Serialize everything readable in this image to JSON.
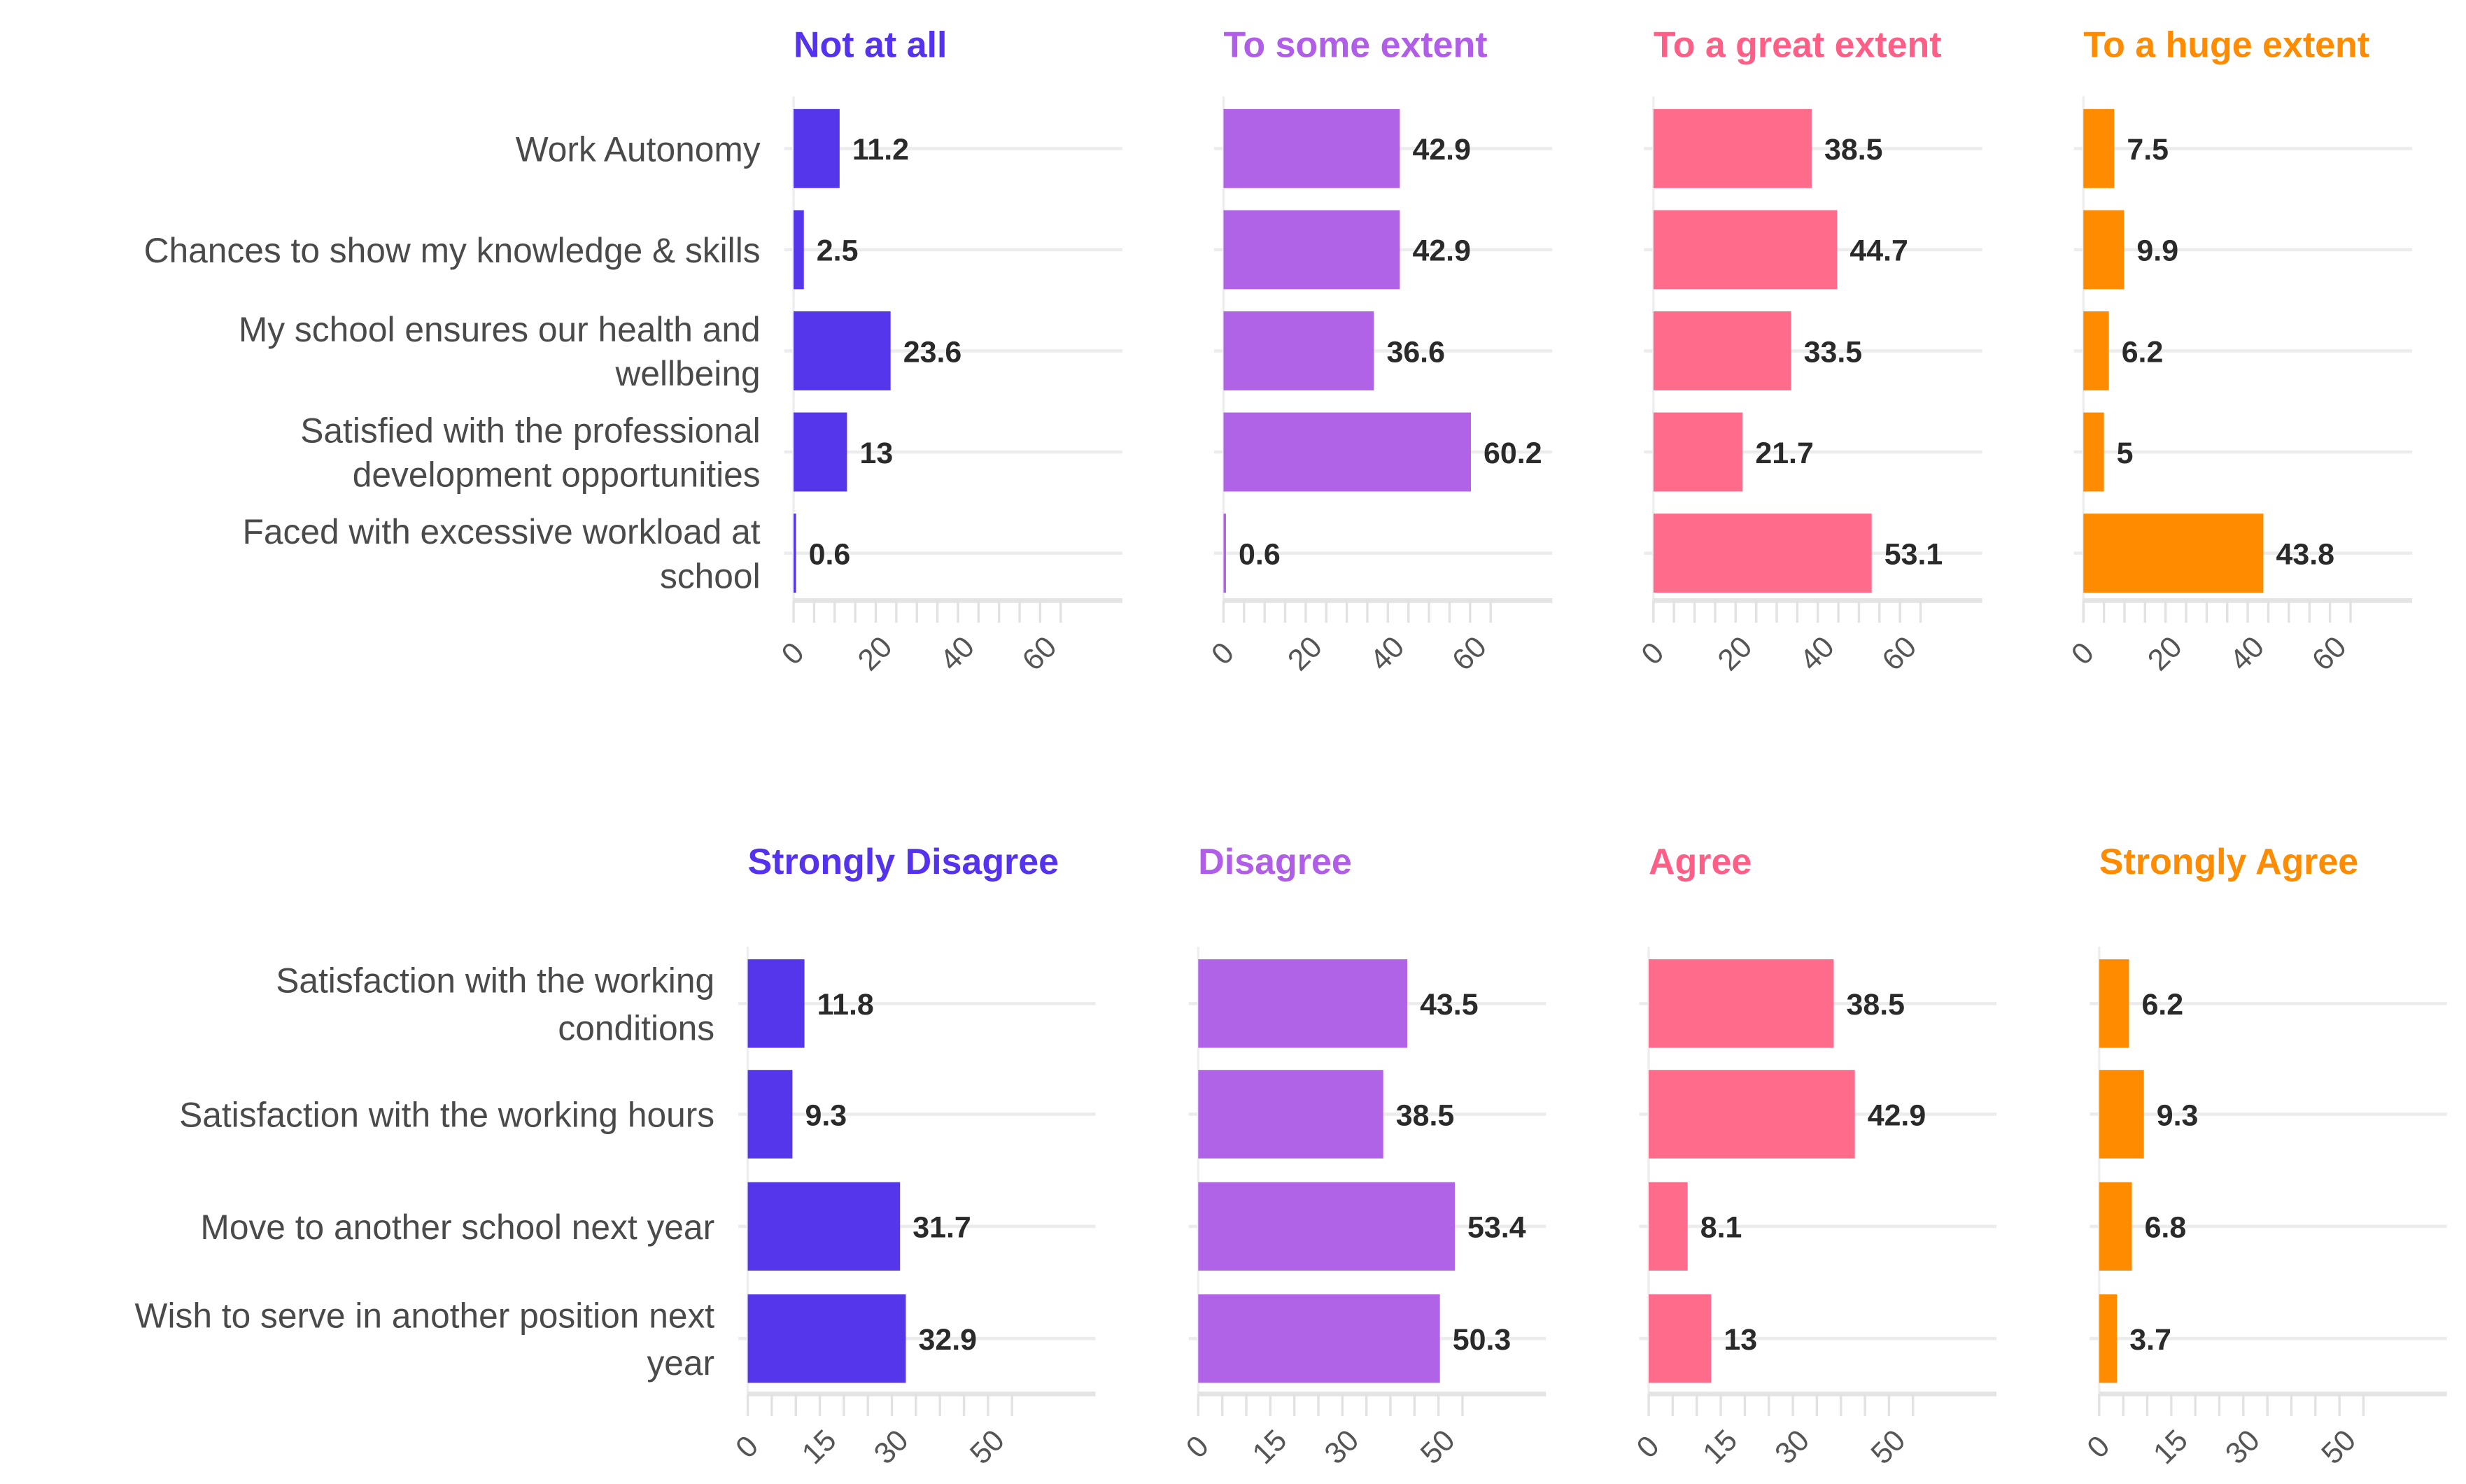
{
  "chart_data": [
    {
      "type": "bar",
      "orientation": "horizontal",
      "categories": [
        [
          "Work Autonomy"
        ],
        [
          "Chances to show my knowledge & skills"
        ],
        [
          "My school ensures our health and",
          "wellbeing"
        ],
        [
          "Satisfied with the professional",
          "development opportunities"
        ],
        [
          "Faced with excessive workload at",
          "school"
        ]
      ],
      "series": [
        {
          "name": "Not at all",
          "color": "#5536ea",
          "title_color": "#5533ee",
          "values": [
            11.2,
            2.5,
            23.6,
            13,
            0.6
          ]
        },
        {
          "name": "To some extent",
          "color": "#b163e8",
          "title_color": "#b05de8",
          "values": [
            42.9,
            42.9,
            36.6,
            60.2,
            0.6
          ]
        },
        {
          "name": "To a great extent",
          "color": "#ff6b8b",
          "title_color": "#ff5e86",
          "values": [
            38.5,
            44.7,
            33.5,
            21.7,
            53.1
          ]
        },
        {
          "name": "To a huge extent",
          "color": "#ff8c00",
          "title_color": "#ff8c00",
          "values": [
            7.5,
            9.9,
            6.2,
            5,
            43.8
          ]
        }
      ],
      "xticks": [
        0,
        20,
        40,
        60
      ],
      "minor_tick_step": 5,
      "xlim": [
        0,
        80
      ]
    },
    {
      "type": "bar",
      "orientation": "horizontal",
      "categories": [
        [
          "Satisfaction with the working",
          "conditions"
        ],
        [
          "Satisfaction with the working hours"
        ],
        [
          "Move to another school next year"
        ],
        [
          "Wish to serve in another position next",
          "year"
        ]
      ],
      "series": [
        {
          "name": "Strongly Disagree",
          "color": "#5536ea",
          "title_color": "#5533ee",
          "values": [
            11.8,
            9.3,
            31.7,
            32.9
          ]
        },
        {
          "name": "Disagree",
          "color": "#b163e8",
          "title_color": "#b05de8",
          "values": [
            43.5,
            38.5,
            53.4,
            50.3
          ]
        },
        {
          "name": "Agree",
          "color": "#ff6b8b",
          "title_color": "#ff5e86",
          "values": [
            38.5,
            42.9,
            8.1,
            13
          ]
        },
        {
          "name": "Strongly Agree",
          "color": "#ff8c00",
          "title_color": "#ff8c00",
          "values": [
            6.2,
            9.3,
            6.8,
            3.7
          ]
        }
      ],
      "xticks": [
        0,
        15,
        30,
        50
      ],
      "minor_tick_step": 5,
      "xlim": [
        0,
        72
      ]
    }
  ]
}
